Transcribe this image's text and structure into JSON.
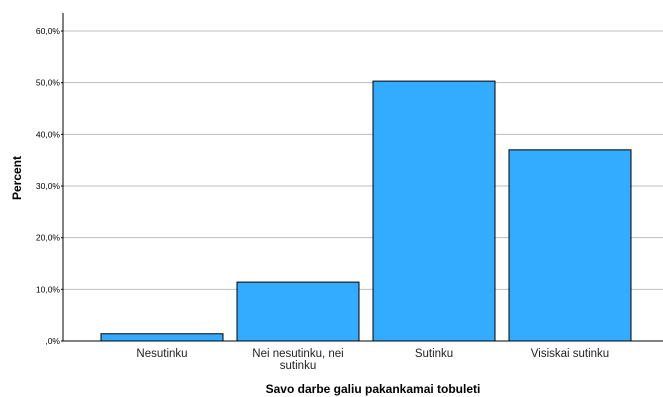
{
  "chart_data": {
    "type": "bar",
    "categories": [
      "Nesutinku",
      "Nei nesutinku, nei sutinku",
      "Sutinku",
      "Visiskai sutinku"
    ],
    "category_lines": [
      [
        "Nesutinku"
      ],
      [
        "Nei nesutinku, nei",
        "sutinku"
      ],
      [
        "Sutinku"
      ],
      [
        "Visiskai sutinku"
      ]
    ],
    "values": [
      1.4,
      11.4,
      50.3,
      37.0
    ],
    "title": "",
    "xlabel": "Savo darbe galiu pakankamai tobuleti",
    "ylabel": "Percent",
    "ylim": [
      0,
      60
    ],
    "yticks": [
      0,
      10,
      20,
      30,
      40,
      50,
      60
    ],
    "ytick_labels": [
      ",0%",
      "10,0%",
      "20,0%",
      "30,0%",
      "40,0%",
      "50,0%",
      "60,0%"
    ],
    "grid": true,
    "legend": "none",
    "colors": {
      "bar_fill": "#33ABFF",
      "bar_stroke": "#000000",
      "grid": "#BDBDBD",
      "axis": "#000000"
    }
  }
}
